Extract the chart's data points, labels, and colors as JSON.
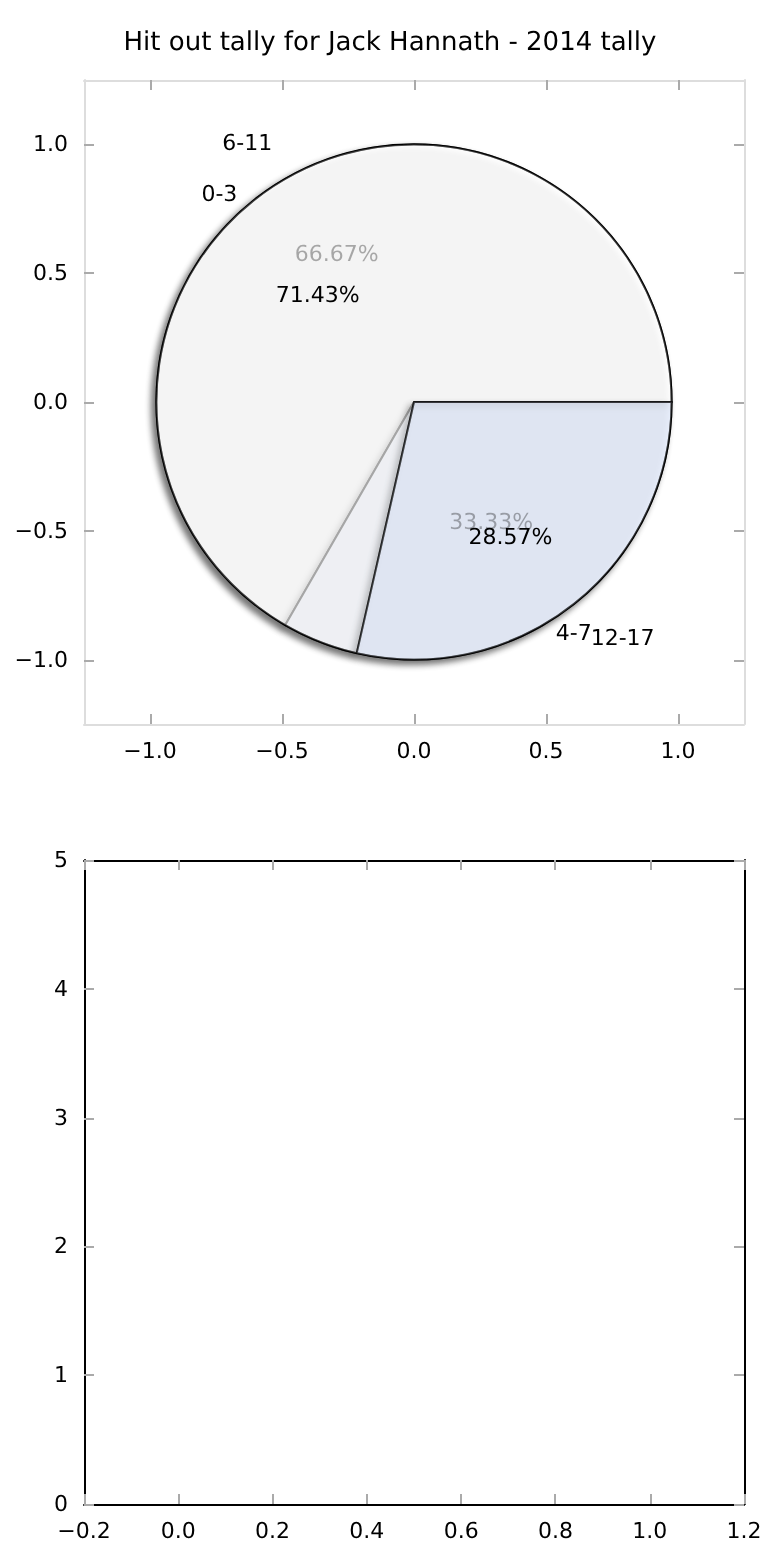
{
  "chart_data": [
    {
      "type": "scatter",
      "title": "Hit out tally for Jack Hannath - 2014 tally",
      "xlim": [
        -1.25,
        1.25
      ],
      "ylim": [
        -1.25,
        1.25
      ],
      "xticks": [
        {
          "value": -1,
          "label": "−1.0"
        },
        {
          "value": -0.5,
          "label": "−0.5"
        },
        {
          "value": 0,
          "label": "0.0"
        },
        {
          "value": 0.5,
          "label": "0.5"
        },
        {
          "value": 1,
          "label": "1.0"
        }
      ],
      "yticks": [
        {
          "value": -1,
          "label": "−1.0"
        },
        {
          "value": -0.5,
          "label": "−0.5"
        },
        {
          "value": 0,
          "label": "0.0"
        },
        {
          "value": 0.5,
          "label": "0.5"
        },
        {
          "value": 1,
          "label": "1.0"
        }
      ],
      "grid": false
    },
    {
      "type": "pie",
      "categories": [
        "6-11",
        "4-7"
      ],
      "values": [
        66.67,
        33.33
      ],
      "value_labels": [
        "66.67%",
        "33.33%"
      ],
      "colors": [
        "#ffffff",
        "#eaf0fd"
      ]
    },
    {
      "type": "pie",
      "categories": [
        "0-3",
        "12-17"
      ],
      "values": [
        71.43,
        28.57
      ],
      "value_labels": [
        "71.43%",
        "28.57%"
      ],
      "colors": [
        "#ffffff",
        "#eaf0fd"
      ]
    },
    {
      "type": "scatter",
      "xlim": [
        -0.2,
        1.2
      ],
      "ylim": [
        0,
        5
      ],
      "xticks": [
        {
          "value": -0.2,
          "label": "−0.2"
        },
        {
          "value": 0,
          "label": "0.0"
        },
        {
          "value": 0.2,
          "label": "0.2"
        },
        {
          "value": 0.4,
          "label": "0.4"
        },
        {
          "value": 0.6,
          "label": "0.6"
        },
        {
          "value": 0.8,
          "label": "0.8"
        },
        {
          "value": 1,
          "label": "1.0"
        },
        {
          "value": 1.2,
          "label": "1.2"
        }
      ],
      "yticks": [
        0,
        1,
        2,
        3,
        4,
        5
      ],
      "grid": false
    }
  ]
}
